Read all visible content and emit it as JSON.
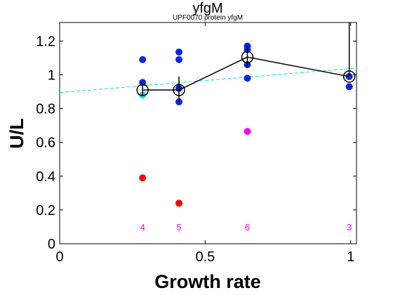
{
  "chart_data": {
    "type": "scatter",
    "title": "yfgM",
    "subtitle": "UPF0070 protein yfgM",
    "xlabel": "Growth rate",
    "ylabel": "U/L",
    "xlim": [
      0,
      1.02
    ],
    "ylim": [
      0,
      1.31
    ],
    "xticks": [
      {
        "value": 0,
        "label": "0"
      },
      {
        "value": 0.5,
        "label": "0.5"
      },
      {
        "value": 1,
        "label": "1"
      }
    ],
    "yticks": [
      {
        "value": 0,
        "label": "0"
      },
      {
        "value": 0.2,
        "label": "0.2"
      },
      {
        "value": 0.4,
        "label": "0.4"
      },
      {
        "value": 0.6,
        "label": "0.6"
      },
      {
        "value": 0.8,
        "label": "0.8"
      },
      {
        "value": 1,
        "label": "1"
      },
      {
        "value": 1.2,
        "label": "1.2"
      }
    ],
    "grid": false,
    "colors": {
      "blue": "#0a28e0",
      "cyan": "#20e0e0",
      "red": "#ff0000",
      "magenta": "#ff00ff",
      "mean_line": "#000000",
      "fit_line": "#00d8ff"
    },
    "points": [
      {
        "x": 0.285,
        "y": 1.09,
        "color": "blue"
      },
      {
        "x": 0.285,
        "y": 0.955,
        "color": "blue"
      },
      {
        "x": 0.285,
        "y": 0.88,
        "color": "cyan"
      },
      {
        "x": 0.285,
        "y": 0.39,
        "color": "red"
      },
      {
        "x": 0.41,
        "y": 1.135,
        "color": "blue"
      },
      {
        "x": 0.41,
        "y": 1.09,
        "color": "blue"
      },
      {
        "x": 0.41,
        "y": 0.92,
        "color": "blue"
      },
      {
        "x": 0.41,
        "y": 0.84,
        "color": "blue"
      },
      {
        "x": 0.41,
        "y": 0.24,
        "color": "red"
      },
      {
        "x": 0.645,
        "y": 1.17,
        "color": "blue"
      },
      {
        "x": 0.645,
        "y": 1.15,
        "color": "blue"
      },
      {
        "x": 0.645,
        "y": 1.06,
        "color": "blue"
      },
      {
        "x": 0.645,
        "y": 0.98,
        "color": "blue"
      },
      {
        "x": 0.645,
        "y": 0.665,
        "color": "magenta"
      },
      {
        "x": 0.995,
        "y": 0.99,
        "color": "blue"
      },
      {
        "x": 0.995,
        "y": 0.93,
        "color": "blue"
      }
    ],
    "mean_series": [
      {
        "x": 0.285,
        "y": 0.91,
        "err_low": 0.875,
        "err_high": 0.945
      },
      {
        "x": 0.41,
        "y": 0.91,
        "err_low": 0.84,
        "err_high": 0.99
      },
      {
        "x": 0.645,
        "y": 1.105,
        "err_low": 1.04,
        "err_high": 1.17
      },
      {
        "x": 0.995,
        "y": 0.99,
        "err_low": 0.99,
        "err_high": 1.31
      }
    ],
    "fit_line": {
      "x": [
        0,
        1.02
      ],
      "y": [
        0.895,
        1.04
      ]
    },
    "counts": [
      {
        "x": 0.285,
        "y": 0.1,
        "label": "4"
      },
      {
        "x": 0.41,
        "y": 0.1,
        "label": "5"
      },
      {
        "x": 0.645,
        "y": 0.1,
        "label": "6"
      },
      {
        "x": 0.995,
        "y": 0.1,
        "label": "3"
      }
    ]
  }
}
